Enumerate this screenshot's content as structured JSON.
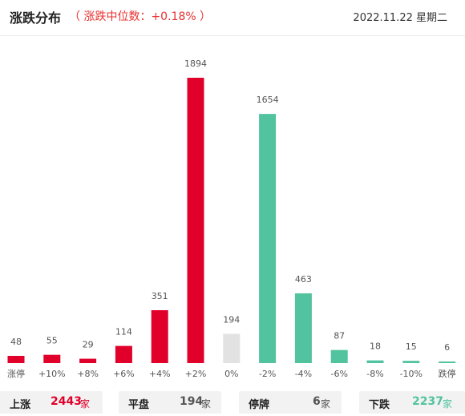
{
  "header": {
    "title": "涨跌分布",
    "subtitle": "（ 涨跌中位数：+0.18% ）",
    "date": "2022.11.22 星期二"
  },
  "colors": {
    "up": "#e0002a",
    "flat": "#e2e2e2",
    "down": "#52c39f"
  },
  "chart_data": {
    "type": "bar",
    "categories": [
      "涨停",
      "+10%",
      "+8%",
      "+6%",
      "+4%",
      "+2%",
      "0%",
      "-2%",
      "-4%",
      "-6%",
      "-8%",
      "-10%",
      "跌停"
    ],
    "values": [
      48,
      55,
      29,
      114,
      351,
      1894,
      194,
      1654,
      463,
      87,
      18,
      15,
      6
    ],
    "value_labels": [
      "48",
      "55",
      "29",
      "114",
      "351",
      "1894",
      "194",
      "1654",
      "463",
      "87",
      "18",
      "15",
      "6"
    ],
    "bar_colors": [
      "up",
      "up",
      "up",
      "up",
      "up",
      "up",
      "flat",
      "down",
      "down",
      "down",
      "down",
      "down",
      "down"
    ],
    "grid": false,
    "legend": "none"
  },
  "summary": {
    "up": {
      "label": "上涨",
      "value": "2443",
      "unit": "家"
    },
    "flat": {
      "label": "平盘",
      "value": "194",
      "unit": "家"
    },
    "halt": {
      "label": "停牌",
      "value": "6",
      "unit": "家"
    },
    "down": {
      "label": "下跌",
      "value": "2237",
      "unit": "家"
    }
  }
}
